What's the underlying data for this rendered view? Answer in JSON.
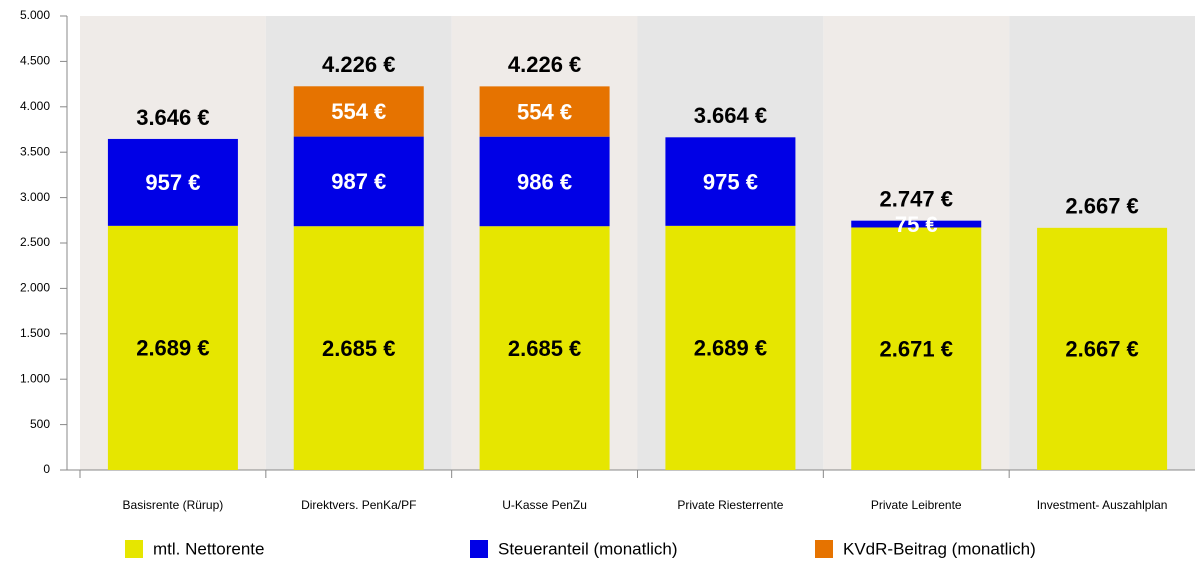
{
  "chart_data": {
    "type": "stacked_bar",
    "categories": [
      "Basisrente (Rürup)",
      "Direktvers. PenKa/PF",
      "U-Kasse PenZu",
      "Private Riesterrente",
      "Private Leibrente",
      "Investment- Auszahlplan"
    ],
    "series": [
      {
        "name": "mtl. Nettorente",
        "color": "#e6e600",
        "values": [
          2689,
          2685,
          2685,
          2689,
          2671,
          2667
        ],
        "value_labels": [
          "2.689 €",
          "2.685 €",
          "2.685 €",
          "2.689 €",
          "2.671 €",
          "2.667 €"
        ]
      },
      {
        "name": "Steueranteil (monatlich)",
        "color": "#0000e6",
        "values": [
          957,
          987,
          986,
          975,
          75,
          null
        ],
        "value_labels": [
          "957 €",
          "987 €",
          "986 €",
          "975 €",
          "75 €",
          null
        ]
      },
      {
        "name": "KVdR-Beitrag (monatlich)",
        "color": "#e67300",
        "values": [
          null,
          554,
          554,
          null,
          null,
          null
        ],
        "value_labels": [
          null,
          "554 €",
          "554 €",
          null,
          null,
          null
        ]
      }
    ],
    "totals": {
      "values": [
        3646,
        4226,
        4226,
        3664,
        2747,
        2667
      ],
      "value_labels": [
        "3.646 €",
        "4.226 €",
        "4.226 €",
        "3.664 €",
        "2.747 €",
        "2.667 €"
      ]
    },
    "ylim": [
      0,
      5000
    ],
    "yticks": [
      0,
      500,
      {
        "value": 1000,
        "label": "1.000"
      },
      {
        "value": 1500,
        "label": "1.500"
      },
      {
        "value": 2000,
        "label": "2.000"
      },
      {
        "value": 2500,
        "label": "2.500"
      },
      {
        "value": 3000,
        "label": "3.000"
      },
      {
        "value": 3500,
        "label": "3.500"
      },
      {
        "value": 4000,
        "label": "4.000"
      },
      {
        "value": 4500,
        "label": "4.500"
      },
      {
        "value": 5000,
        "label": "5.000"
      }
    ],
    "legend": "bottom"
  }
}
